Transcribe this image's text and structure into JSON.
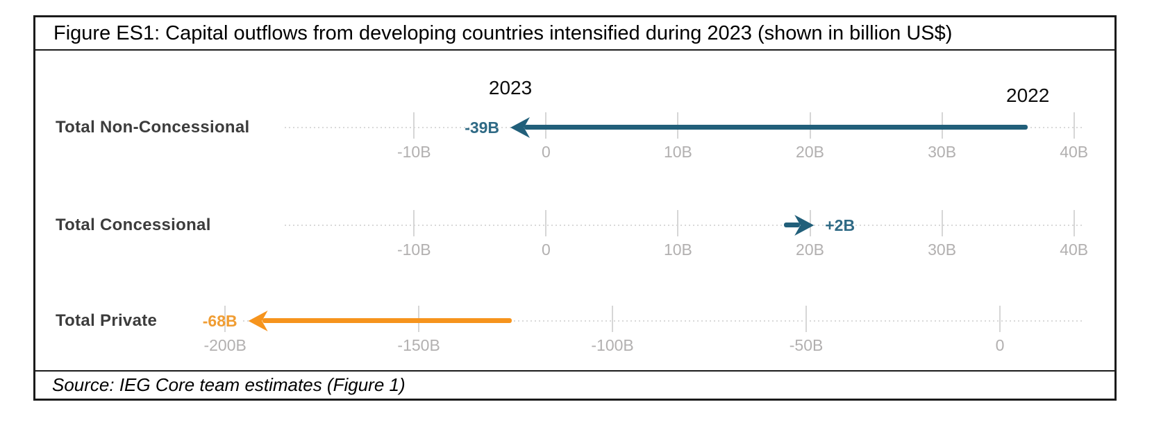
{
  "figure": {
    "title": "Figure ES1: Capital outflows from developing countries intensified during 2023 (shown in billion US$)",
    "source": "Source: IEG Core team estimates (Figure 1)"
  },
  "chart_data": {
    "type": "arrow",
    "subtype": "change-arrow (dumbbell) chart, 2022 to 2023",
    "title": "Figure ES1: Capital outflows from developing countries intensified during 2023 (shown in billion US$)",
    "unit": "billion US$",
    "xlabel": "",
    "ylabel": "",
    "grid": "dotted horizontal tracks with light tick marks",
    "start_year_label": "2022",
    "end_year_label": "2023",
    "rows": [
      {
        "category": "Total Non-Concessional",
        "value_2022": 36.5,
        "value_2023": -2.7,
        "change": -39,
        "change_label": "-39B",
        "arrow_color": "#215f7a",
        "change_label_color": "#2f6a85",
        "axis": {
          "min": -19.8,
          "max": 40.7,
          "ticks": [
            {
              "v": -10,
              "label": "-10B"
            },
            {
              "v": 0,
              "label": "0"
            },
            {
              "v": 10,
              "label": "10B"
            },
            {
              "v": 20,
              "label": "20B"
            },
            {
              "v": 30,
              "label": "30B"
            },
            {
              "v": 40,
              "label": "40B"
            }
          ]
        },
        "annotations": [
          {
            "text": "2023",
            "anchor": "to"
          },
          {
            "text": "2022",
            "anchor": "from"
          }
        ]
      },
      {
        "category": "Total Concessional",
        "value_2022": 18,
        "value_2023": 20.3,
        "change": 2,
        "change_label": "+2B",
        "arrow_color": "#215f7a",
        "change_label_color": "#2f6a85",
        "axis": {
          "min": -19.8,
          "max": 40.7,
          "ticks": [
            {
              "v": -10,
              "label": "-10B"
            },
            {
              "v": 0,
              "label": "0"
            },
            {
              "v": 10,
              "label": "10B"
            },
            {
              "v": 20,
              "label": "20B"
            },
            {
              "v": 30,
              "label": "30B"
            },
            {
              "v": 40,
              "label": "40B"
            }
          ]
        },
        "annotations": []
      },
      {
        "category": "Total Private",
        "value_2022": -126,
        "value_2023": -194,
        "change": -68,
        "change_label": "-68B",
        "arrow_color": "#f6941d",
        "change_label_color": "#f09d33",
        "axis": {
          "min": -210.6,
          "max": 21.5,
          "ticks": [
            {
              "v": -200,
              "label": "-200B"
            },
            {
              "v": -150,
              "label": "-150B"
            },
            {
              "v": -100,
              "label": "-100B"
            },
            {
              "v": -50,
              "label": "-50B"
            },
            {
              "v": 0,
              "label": "0"
            }
          ]
        },
        "annotations": []
      }
    ],
    "source": "Source: IEG Core team estimates (Figure 1)"
  }
}
